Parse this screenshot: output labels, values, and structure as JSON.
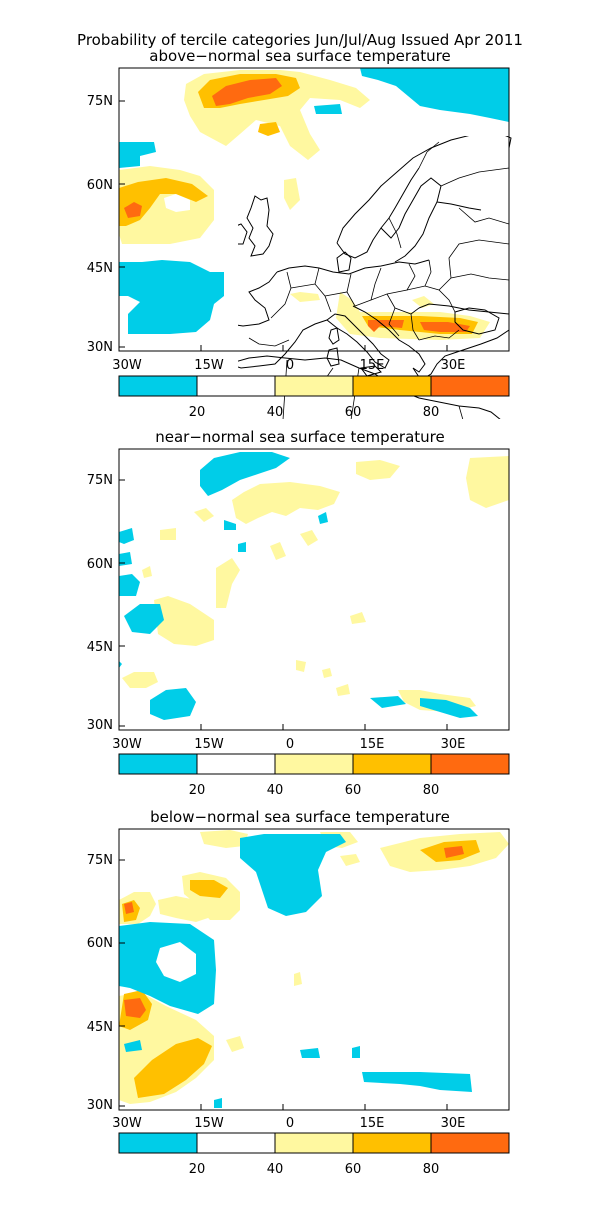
{
  "title": "Probability of tercile categories Jun/Jul/Aug Issued Apr 2011",
  "panels": [
    {
      "subtitle": "above−normal sea surface temperature"
    },
    {
      "subtitle": "near−normal sea surface temperature"
    },
    {
      "subtitle": "below−normal sea surface temperature"
    }
  ],
  "lat_labels": [
    "75N",
    "60N",
    "45N",
    "30N"
  ],
  "lon_labels": [
    "30W",
    "15W",
    "0",
    "15E",
    "30E"
  ],
  "colorbar": {
    "labels": [
      "20",
      "40",
      "60",
      "80"
    ],
    "colors": [
      "#00cde8",
      "#ffffff",
      "#fff8a0",
      "#ffc000",
      "#ff6a10"
    ]
  }
}
